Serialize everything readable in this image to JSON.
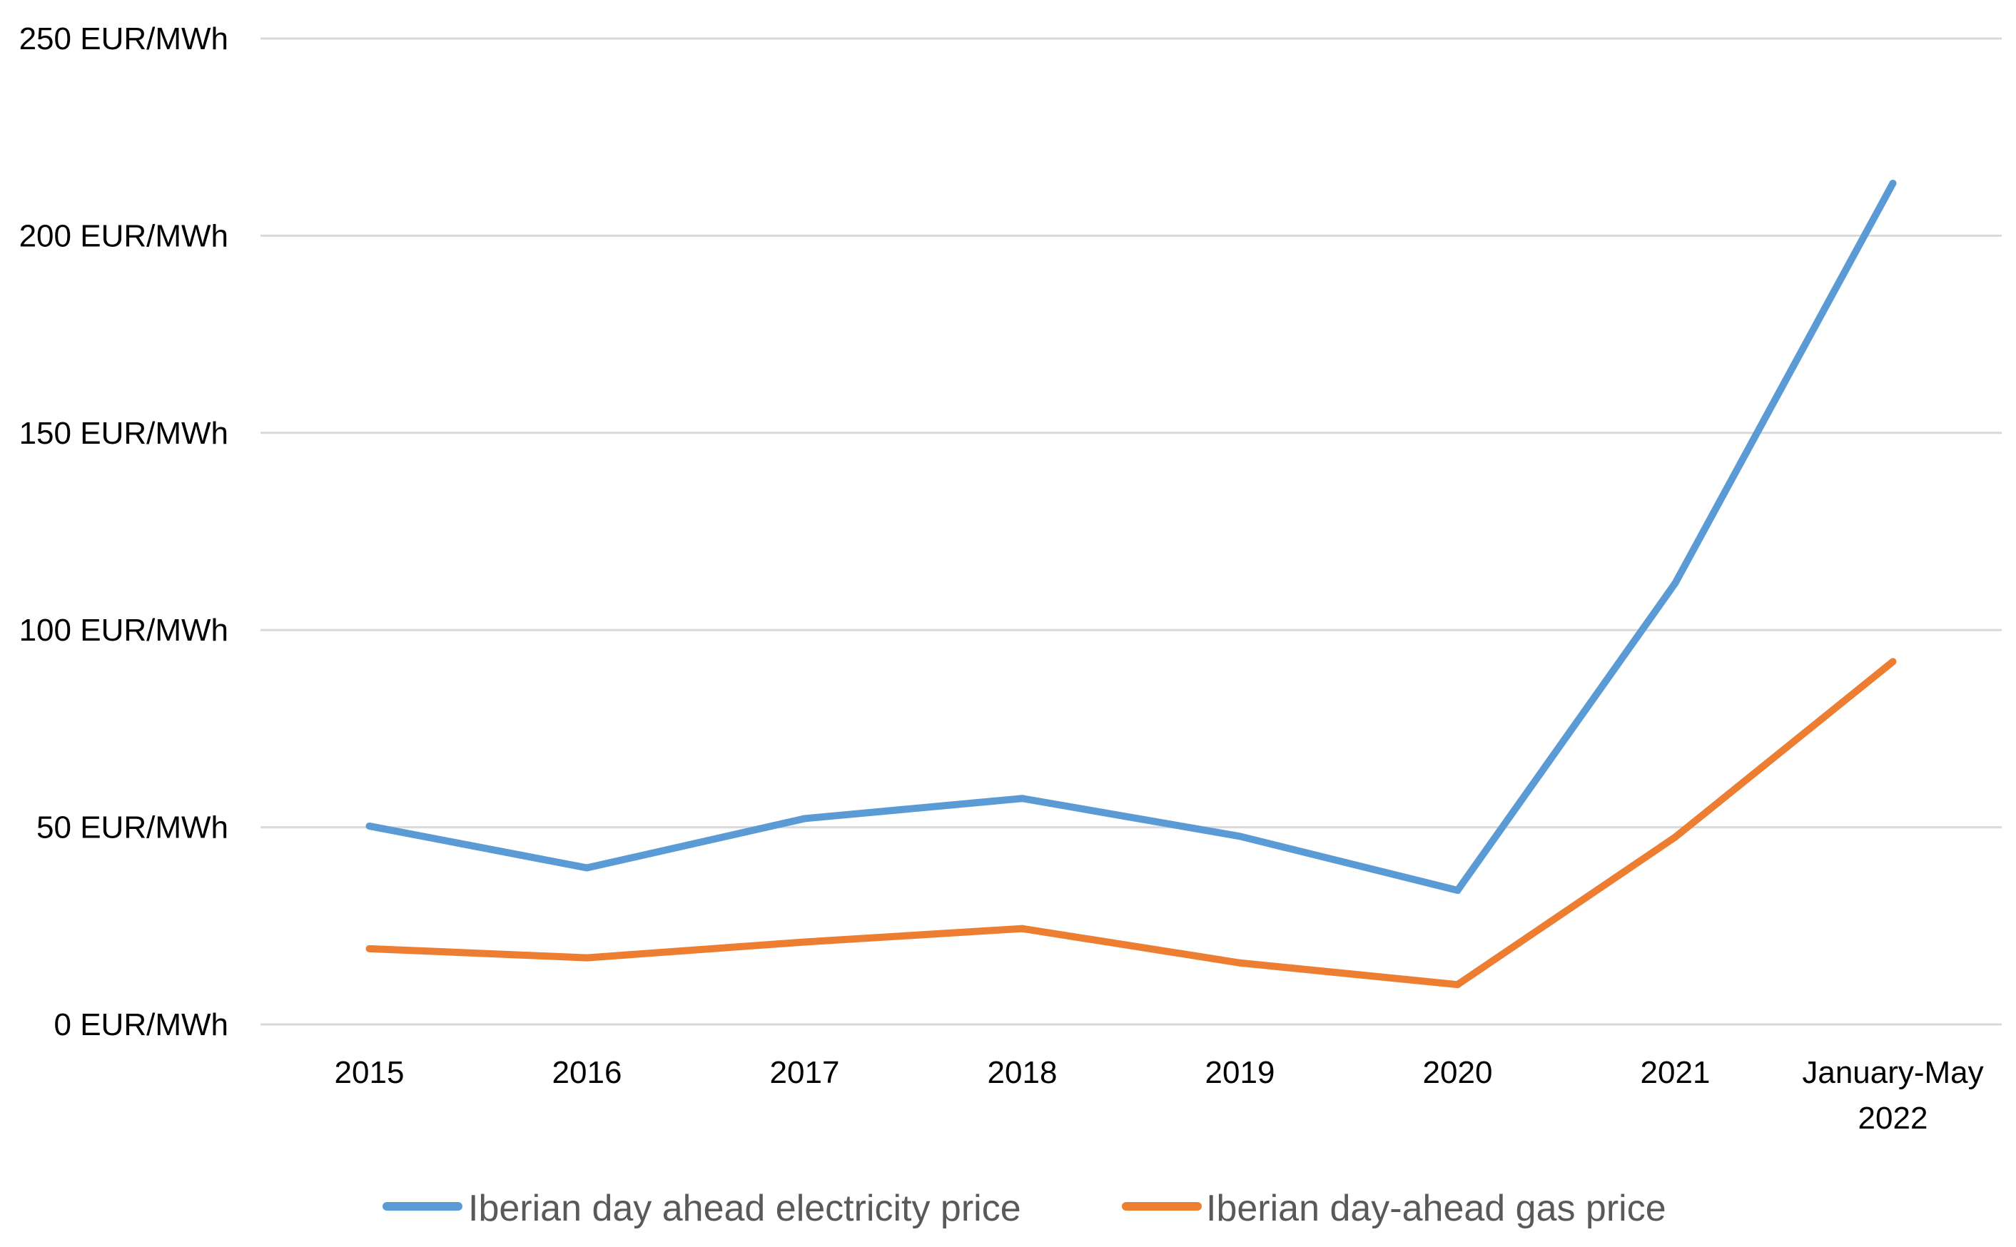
{
  "chart_data": {
    "type": "line",
    "title": "",
    "xlabel": "",
    "ylabel": "",
    "categories": [
      "2015",
      "2016",
      "2017",
      "2018",
      "2019",
      "2020",
      "2021",
      "January-May 2022"
    ],
    "category_lines": [
      [
        "2015"
      ],
      [
        "2016"
      ],
      [
        "2017"
      ],
      [
        "2018"
      ],
      [
        "2019"
      ],
      [
        "2020"
      ],
      [
        "2021"
      ],
      [
        "January-May",
        "2022"
      ]
    ],
    "y_ticks": [
      {
        "value": 0,
        "label": "0 EUR/MWh"
      },
      {
        "value": 50,
        "label": "50 EUR/MWh"
      },
      {
        "value": 100,
        "label": "100 EUR/MWh"
      },
      {
        "value": 150,
        "label": "150 EUR/MWh"
      },
      {
        "value": 200,
        "label": "200 EUR/MWh"
      },
      {
        "value": 250,
        "label": "250 EUR/MWh"
      }
    ],
    "ylim": [
      0,
      250
    ],
    "grid": true,
    "legend_position": "bottom",
    "series": [
      {
        "name": "Iberian day ahead electricity price",
        "color": "#5b9bd5",
        "values": [
          50.3,
          39.7,
          52.2,
          57.3,
          47.7,
          34.0,
          111.9,
          213.3
        ]
      },
      {
        "name": "Iberian day-ahead gas price",
        "color": "#ed7d31",
        "values": [
          19.2,
          16.9,
          20.9,
          24.3,
          15.6,
          10.1,
          47.5,
          92.0
        ]
      }
    ]
  }
}
